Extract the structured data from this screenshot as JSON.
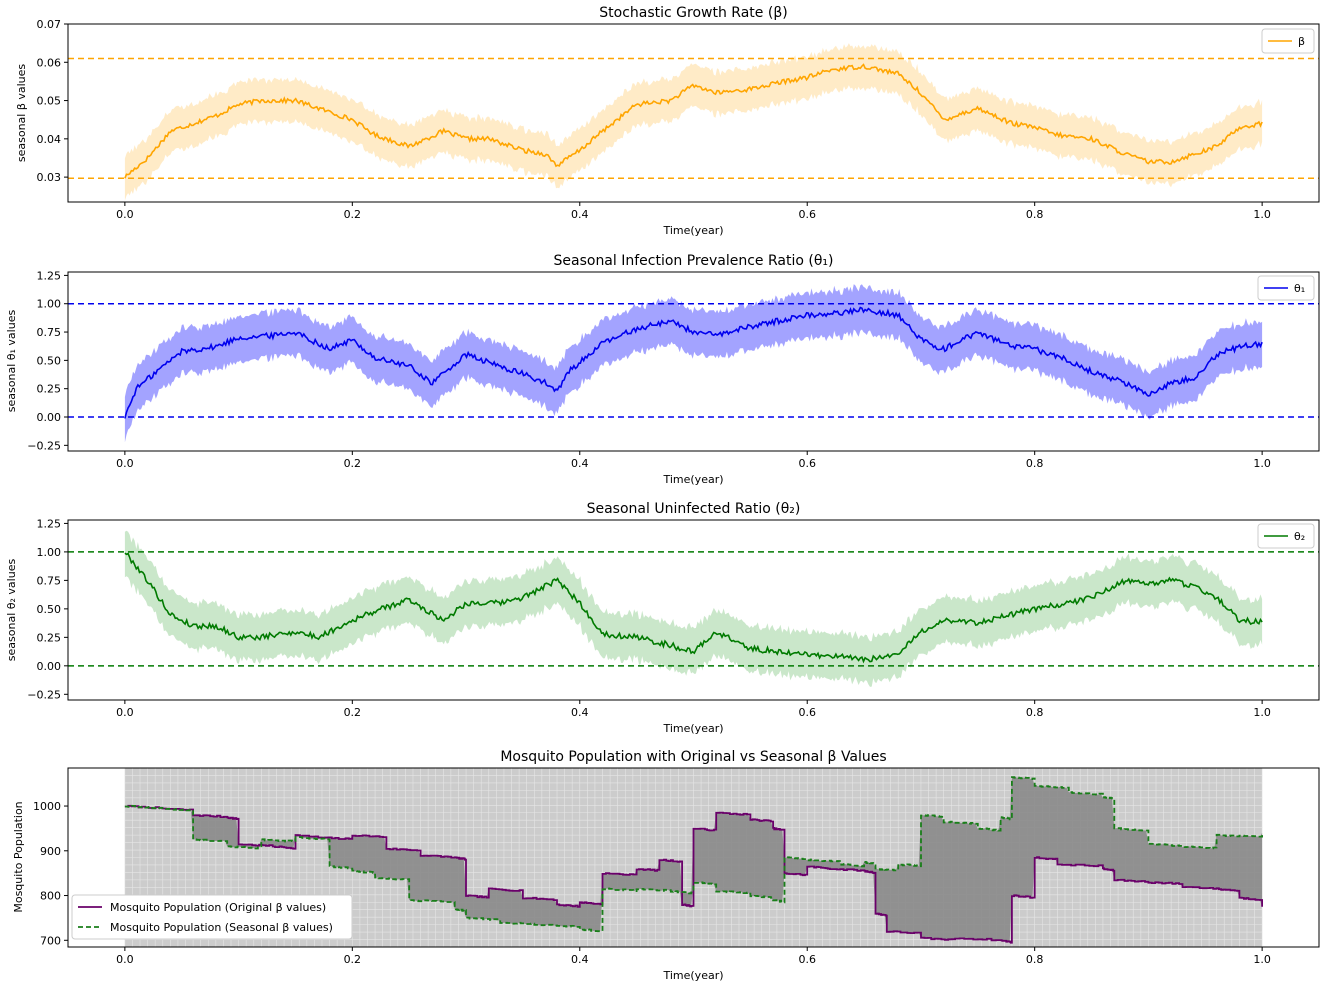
{
  "chart_data": [
    {
      "id": "beta",
      "type": "line",
      "title": "Stochastic Growth Rate (β)",
      "xlabel": "Time(year)",
      "ylabel": "seasonal β values",
      "xlim": [
        -0.05,
        1.05
      ],
      "ylim": [
        0.0235,
        0.07
      ],
      "xticks": [
        "0.0",
        "0.2",
        "0.4",
        "0.6",
        "0.8",
        "1.0"
      ],
      "yticks": [
        "0.03",
        "0.04",
        "0.05",
        "0.06",
        "0.07"
      ],
      "color": "#ffa500",
      "band_color": "#ffa500",
      "band_opacity": 0.22,
      "band_halfwidth": 0.0055,
      "hlines": [
        0.061,
        0.0297
      ],
      "legend": [
        "β"
      ],
      "legend_position": "top-right",
      "series": [
        {
          "name": "β",
          "x": [
            0.0,
            0.02,
            0.04,
            0.06,
            0.08,
            0.1,
            0.12,
            0.15,
            0.18,
            0.2,
            0.22,
            0.25,
            0.28,
            0.3,
            0.32,
            0.35,
            0.37,
            0.38,
            0.4,
            0.42,
            0.45,
            0.48,
            0.5,
            0.52,
            0.55,
            0.58,
            0.6,
            0.62,
            0.65,
            0.68,
            0.7,
            0.72,
            0.75,
            0.78,
            0.8,
            0.82,
            0.85,
            0.88,
            0.9,
            0.92,
            0.94,
            0.96,
            0.98,
            1.0
          ],
          "y": [
            0.03,
            0.035,
            0.042,
            0.044,
            0.046,
            0.049,
            0.05,
            0.05,
            0.047,
            0.045,
            0.041,
            0.038,
            0.042,
            0.04,
            0.04,
            0.037,
            0.036,
            0.033,
            0.037,
            0.042,
            0.049,
            0.05,
            0.054,
            0.052,
            0.053,
            0.055,
            0.056,
            0.058,
            0.059,
            0.057,
            0.052,
            0.045,
            0.048,
            0.044,
            0.043,
            0.041,
            0.04,
            0.036,
            0.034,
            0.034,
            0.036,
            0.038,
            0.043,
            0.044
          ]
        }
      ]
    },
    {
      "id": "theta1",
      "type": "line",
      "title": "Seasonal Infection Prevalence Ratio (θ₁)",
      "xlabel": "Time(year)",
      "ylabel": "seasonal θ₁ values",
      "xlim": [
        -0.05,
        1.05
      ],
      "ylim": [
        -0.3,
        1.28
      ],
      "xticks": [
        "0.0",
        "0.2",
        "0.4",
        "0.6",
        "0.8",
        "1.0"
      ],
      "yticks": [
        "−0.25",
        "0.00",
        "0.25",
        "0.50",
        "0.75",
        "1.00",
        "1.25"
      ],
      "ytick_values": [
        -0.25,
        0.0,
        0.25,
        0.5,
        0.75,
        1.0,
        1.25
      ],
      "color": "#0000ee",
      "band_color": "#3333ff",
      "band_opacity": 0.45,
      "band_halfwidth": 0.2,
      "hlines": [
        1.0,
        0.0
      ],
      "legend": [
        "θ₁"
      ],
      "legend_position": "top-right",
      "series": [
        {
          "name": "θ₁",
          "x": [
            0.0,
            0.01,
            0.03,
            0.05,
            0.08,
            0.1,
            0.13,
            0.15,
            0.18,
            0.2,
            0.22,
            0.25,
            0.27,
            0.3,
            0.32,
            0.35,
            0.37,
            0.38,
            0.39,
            0.42,
            0.45,
            0.48,
            0.5,
            0.52,
            0.55,
            0.6,
            0.63,
            0.65,
            0.68,
            0.7,
            0.72,
            0.75,
            0.78,
            0.8,
            0.83,
            0.85,
            0.88,
            0.9,
            0.92,
            0.94,
            0.96,
            0.98,
            1.0
          ],
          "y": [
            0.0,
            0.25,
            0.42,
            0.58,
            0.62,
            0.7,
            0.72,
            0.75,
            0.6,
            0.68,
            0.52,
            0.45,
            0.3,
            0.55,
            0.48,
            0.38,
            0.3,
            0.22,
            0.4,
            0.65,
            0.78,
            0.85,
            0.75,
            0.72,
            0.8,
            0.9,
            0.92,
            0.95,
            0.9,
            0.68,
            0.6,
            0.75,
            0.62,
            0.6,
            0.5,
            0.4,
            0.3,
            0.2,
            0.3,
            0.35,
            0.55,
            0.62,
            0.65
          ]
        }
      ]
    },
    {
      "id": "theta2",
      "type": "line",
      "title": "Seasonal Uninfected Ratio (θ₂)",
      "xlabel": "Time(year)",
      "ylabel": "seasonal θ₂ values",
      "xlim": [
        -0.05,
        1.05
      ],
      "ylim": [
        -0.3,
        1.28
      ],
      "xticks": [
        "0.0",
        "0.2",
        "0.4",
        "0.6",
        "0.8",
        "1.0"
      ],
      "yticks": [
        "−0.25",
        "0.00",
        "0.25",
        "0.50",
        "0.75",
        "1.00",
        "1.25"
      ],
      "ytick_values": [
        -0.25,
        0.0,
        0.25,
        0.5,
        0.75,
        1.0,
        1.25
      ],
      "color": "#007a00",
      "band_color": "#2ca02c",
      "band_opacity": 0.25,
      "band_halfwidth": 0.2,
      "hlines": [
        1.0,
        0.0
      ],
      "legend": [
        "θ₂"
      ],
      "legend_position": "top-right",
      "series": [
        {
          "name": "θ₂",
          "x": [
            0.0,
            0.02,
            0.04,
            0.06,
            0.08,
            0.1,
            0.12,
            0.15,
            0.17,
            0.2,
            0.22,
            0.25,
            0.28,
            0.3,
            0.33,
            0.35,
            0.38,
            0.4,
            0.42,
            0.45,
            0.48,
            0.5,
            0.52,
            0.55,
            0.58,
            0.6,
            0.63,
            0.65,
            0.68,
            0.7,
            0.72,
            0.75,
            0.78,
            0.8,
            0.83,
            0.85,
            0.88,
            0.9,
            0.92,
            0.94,
            0.96,
            0.98,
            1.0
          ],
          "y": [
            1.0,
            0.75,
            0.45,
            0.35,
            0.35,
            0.25,
            0.25,
            0.3,
            0.25,
            0.4,
            0.48,
            0.58,
            0.4,
            0.55,
            0.55,
            0.6,
            0.75,
            0.55,
            0.28,
            0.25,
            0.18,
            0.12,
            0.3,
            0.15,
            0.12,
            0.1,
            0.08,
            0.05,
            0.1,
            0.3,
            0.4,
            0.38,
            0.45,
            0.5,
            0.55,
            0.6,
            0.75,
            0.72,
            0.75,
            0.7,
            0.6,
            0.4,
            0.38
          ]
        }
      ]
    },
    {
      "id": "mosquito",
      "type": "line",
      "title": "Mosquito Population with Original vs Seasonal  β Values",
      "xlabel": "Time(year)",
      "ylabel": "Mosquito Population",
      "xlim": [
        -0.05,
        1.05
      ],
      "ylim": [
        685,
        1085
      ],
      "xticks": [
        "0.0",
        "0.2",
        "0.4",
        "0.6",
        "0.8",
        "1.0"
      ],
      "yticks": [
        "700",
        "800",
        "900",
        "1000"
      ],
      "ytick_values": [
        700,
        800,
        900,
        1000
      ],
      "grid": true,
      "grid_background": "#cccccc",
      "fill_between": "#8a8a8a",
      "legend_position": "bottom-left",
      "series": [
        {
          "name": "Mosquito Population (Original β values)",
          "color": "#6a006a",
          "dash": "solid",
          "x": [
            0.0,
            0.03,
            0.06,
            0.09,
            0.1,
            0.13,
            0.15,
            0.17,
            0.2,
            0.23,
            0.26,
            0.29,
            0.3,
            0.32,
            0.35,
            0.38,
            0.4,
            0.42,
            0.45,
            0.47,
            0.49,
            0.5,
            0.52,
            0.55,
            0.57,
            0.58,
            0.6,
            0.62,
            0.65,
            0.66,
            0.67,
            0.7,
            0.73,
            0.77,
            0.78,
            0.8,
            0.82,
            0.86,
            0.87,
            0.9,
            0.93,
            0.96,
            0.98,
            1.0
          ],
          "y": [
            1000,
            995,
            980,
            975,
            915,
            910,
            935,
            930,
            935,
            905,
            890,
            885,
            800,
            815,
            795,
            780,
            785,
            850,
            860,
            880,
            780,
            950,
            985,
            970,
            950,
            850,
            865,
            860,
            855,
            760,
            720,
            705,
            705,
            700,
            800,
            885,
            870,
            860,
            835,
            830,
            820,
            815,
            795,
            775
          ]
        },
        {
          "name": "Mosquito Population (Seasonal β values)",
          "color": "#1a7f1a",
          "dash": "dashed",
          "x": [
            0.0,
            0.03,
            0.06,
            0.09,
            0.12,
            0.15,
            0.18,
            0.2,
            0.22,
            0.25,
            0.29,
            0.3,
            0.33,
            0.36,
            0.4,
            0.42,
            0.45,
            0.48,
            0.5,
            0.52,
            0.55,
            0.57,
            0.58,
            0.6,
            0.63,
            0.65,
            0.66,
            0.68,
            0.7,
            0.72,
            0.75,
            0.77,
            0.78,
            0.8,
            0.83,
            0.86,
            0.87,
            0.9,
            0.93,
            0.96,
            1.0
          ],
          "y": [
            1000,
            995,
            925,
            910,
            925,
            930,
            865,
            855,
            840,
            790,
            770,
            750,
            740,
            735,
            725,
            815,
            815,
            810,
            830,
            810,
            800,
            790,
            885,
            880,
            870,
            875,
            860,
            870,
            980,
            965,
            950,
            975,
            1065,
            1045,
            1030,
            1020,
            950,
            915,
            910,
            935,
            940
          ]
        }
      ]
    }
  ]
}
